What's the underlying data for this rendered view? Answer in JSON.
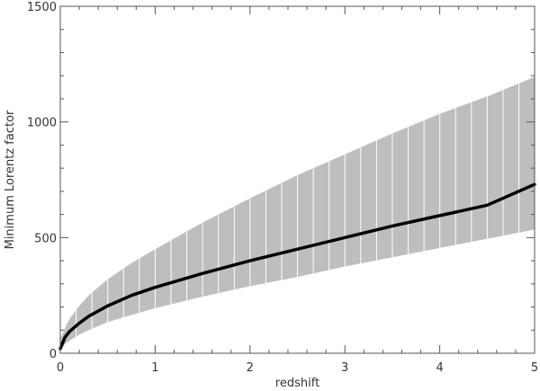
{
  "chart_data": {
    "type": "area",
    "title": "",
    "xlabel": "redshift",
    "ylabel": "Minimum Lorentz factor",
    "xlim": [
      0,
      5
    ],
    "ylim": [
      0,
      1500
    ],
    "x_ticks": [
      0,
      1,
      2,
      3,
      4,
      5
    ],
    "x_tick_labels": [
      "0",
      "1",
      "2",
      "3",
      "4",
      "5"
    ],
    "y_ticks": [
      0,
      500,
      1000,
      1500
    ],
    "y_tick_labels": [
      "0",
      "500",
      "1000",
      "1500"
    ],
    "grid": false,
    "legend": "none",
    "series": [
      {
        "role": "central-curve",
        "x": [
          0,
          0.05,
          0.1,
          0.2,
          0.3,
          0.5,
          0.75,
          1,
          1.5,
          2,
          2.5,
          3,
          3.5,
          4,
          4.5,
          5
        ],
        "y": [
          20,
          70,
          95,
          130,
          160,
          205,
          250,
          285,
          345,
          400,
          450,
          500,
          550,
          595,
          640,
          730
        ]
      },
      {
        "role": "band-upper",
        "x": [
          0,
          0.05,
          0.1,
          0.2,
          0.3,
          0.5,
          0.75,
          1,
          1.5,
          2,
          2.5,
          3,
          3.5,
          4,
          4.5,
          5
        ],
        "y": [
          60,
          110,
          150,
          205,
          250,
          320,
          390,
          450,
          565,
          670,
          770,
          860,
          950,
          1035,
          1110,
          1195
        ]
      },
      {
        "role": "band-lower",
        "x": [
          0,
          0.05,
          0.1,
          0.2,
          0.3,
          0.5,
          0.75,
          1,
          1.5,
          2,
          2.5,
          3,
          3.5,
          4,
          4.5,
          5
        ],
        "y": [
          15,
          40,
          55,
          80,
          100,
          135,
          165,
          195,
          245,
          290,
          330,
          375,
          415,
          455,
          495,
          535
        ]
      }
    ],
    "band_color": "#bebebe",
    "line_color": "#000000",
    "frame_color": "#555555",
    "hatch_color": "#ffffff",
    "hatch_spacing_x": 0.1667
  }
}
